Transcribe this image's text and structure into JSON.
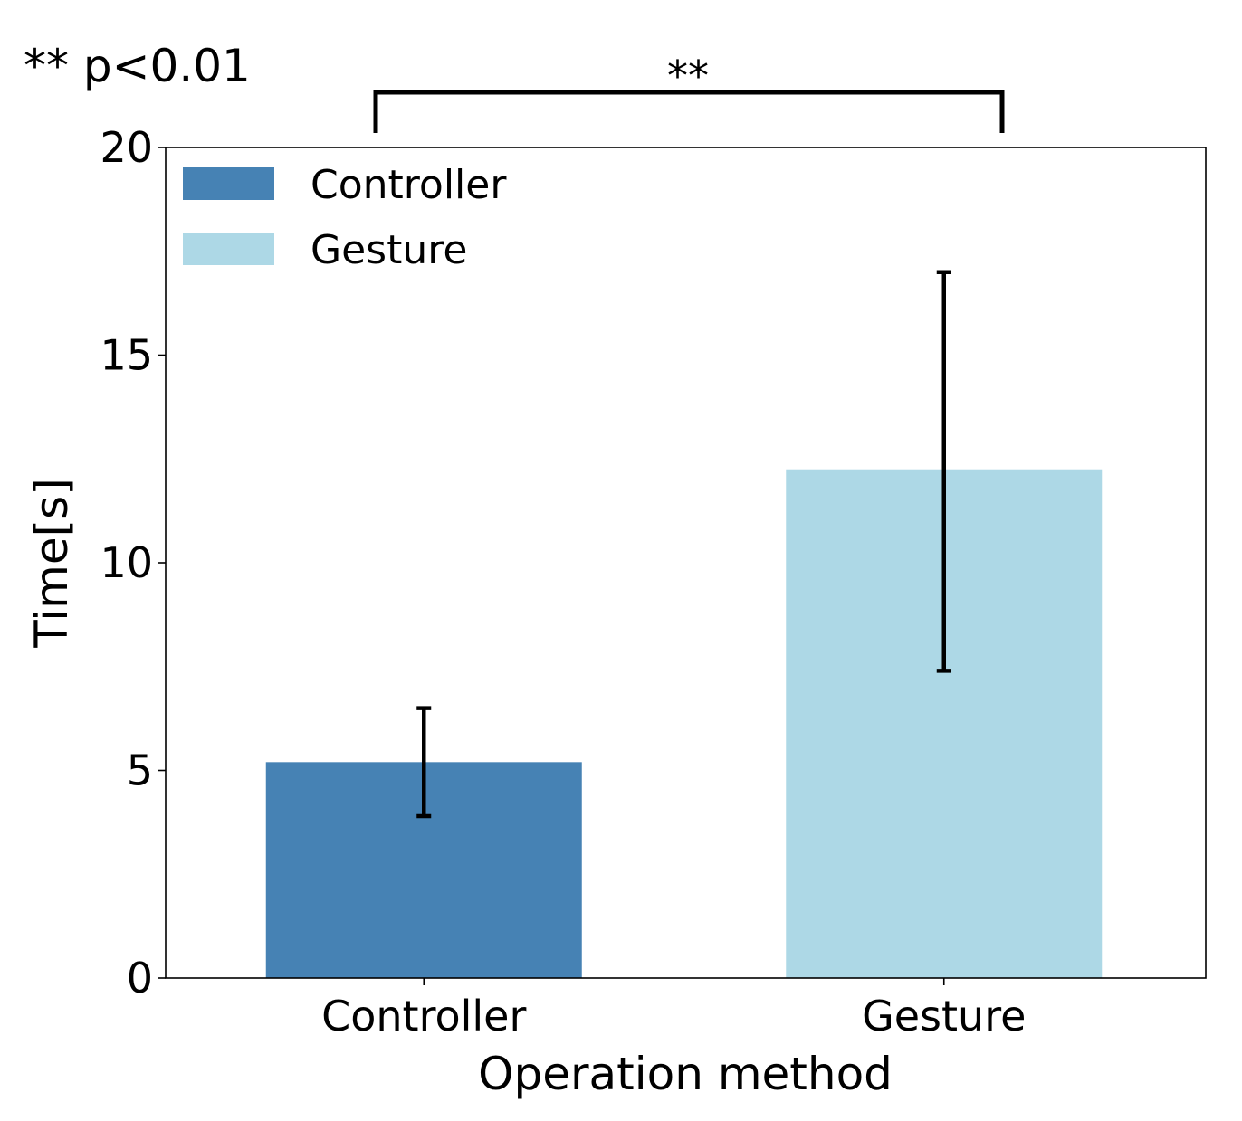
{
  "chart_data": {
    "type": "bar",
    "categories": [
      "Controller",
      "Gesture"
    ],
    "values": [
      5.2,
      12.25
    ],
    "error_low": [
      3.9,
      7.4
    ],
    "error_high": [
      6.5,
      17.0
    ],
    "colors": [
      "#4682b4",
      "#add8e6"
    ],
    "xlabel": "Operation method",
    "ylabel": "Time[s]",
    "ylim": [
      0,
      20
    ],
    "yticks": [
      "0",
      "5",
      "10",
      "15",
      "20"
    ],
    "ytick_values": [
      0,
      5,
      10,
      15,
      20
    ],
    "legend": {
      "position": "top-left",
      "entries": [
        {
          "label": "Controller",
          "color": "#4682b4"
        },
        {
          "label": "Gesture",
          "color": "#add8e6"
        }
      ]
    },
    "significance": {
      "note": "** p<0.01",
      "mark": "**",
      "between": [
        "Controller",
        "Gesture"
      ]
    }
  }
}
